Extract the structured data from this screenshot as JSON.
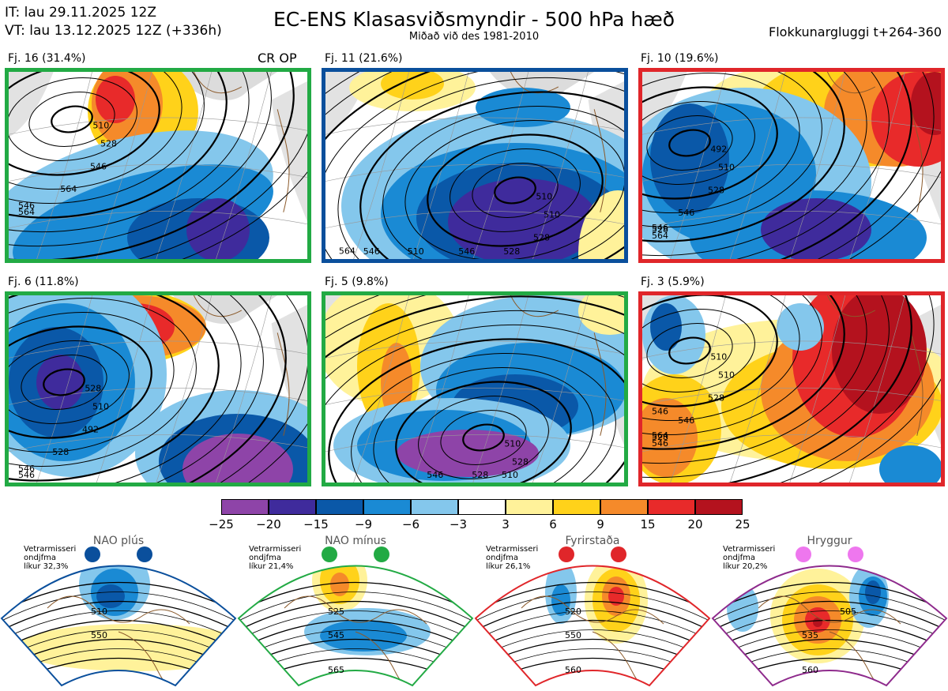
{
  "header": {
    "it": "IT: lau 29.11.2025 12Z",
    "vt": "VT: lau 13.12.2025 12Z  (+336h)",
    "title": "EC-ENS Klasasviðsmyndir - 500 hPa hæð",
    "subtitle": "Miðað við des 1981-2010",
    "window": "Flokkunargluggi t+264-360"
  },
  "clusters": [
    {
      "label": "Fj. 16 (31.4%)",
      "border": "#22aa44",
      "annotation": "CR OP",
      "contours": [
        "510",
        "528",
        "546",
        "564",
        "546",
        "564"
      ]
    },
    {
      "label": "Fj. 11 (21.6%)",
      "border": "#0a4f9c",
      "annotation": "",
      "contours": [
        "510",
        "510",
        "528",
        "528",
        "546",
        "510",
        "546",
        "564"
      ]
    },
    {
      "label": "Fj. 10 (19.6%)",
      "border": "#e0262a",
      "annotation": "",
      "contours": [
        "492",
        "510",
        "528",
        "546",
        "528",
        "564",
        "546"
      ]
    },
    {
      "label": "Fj. 6 (11.8%)",
      "border": "#22aa44",
      "annotation": "",
      "contours": [
        "528",
        "510",
        "492",
        "528",
        "546",
        "546"
      ]
    },
    {
      "label": "Fj. 5 (9.8%)",
      "border": "#22aa44",
      "annotation": "",
      "contours": [
        "510",
        "528",
        "510",
        "528",
        "546"
      ]
    },
    {
      "label": "Fj. 3 (5.9%)",
      "border": "#e0262a",
      "annotation": "",
      "contours": [
        "510",
        "510",
        "528",
        "546",
        "528",
        "546",
        "564",
        "546"
      ]
    }
  ],
  "colorbar": {
    "ticks": [
      "−25",
      "−20",
      "−15",
      "−9",
      "−6",
      "−3",
      "3",
      "6",
      "9",
      "15",
      "20",
      "25"
    ],
    "colors": [
      "#8e44a8",
      "#3f2b9c",
      "#0a58a8",
      "#1a8ad4",
      "#84c7ec",
      "#ffffff",
      "#fff29a",
      "#ffd21a",
      "#f58a2a",
      "#e82a2a",
      "#b4121e"
    ]
  },
  "regimes": [
    {
      "name": "NAO plús",
      "note": [
        "Vetrarmisseri",
        "ondjfma",
        "líkur 32,3%"
      ],
      "color": "#0a4f9c",
      "dot": "#0a4f9c",
      "contours": [
        "510",
        "550"
      ]
    },
    {
      "name": "NAO mínus",
      "note": [
        "Vetrarmisseri",
        "ondjfma",
        "líkur 21,4%"
      ],
      "color": "#22aa44",
      "dot": "#22aa44",
      "contours": [
        "525",
        "545",
        "565"
      ]
    },
    {
      "name": "Fyrirstaða",
      "note": [
        "Vetrarmisseri",
        "ondjfma",
        "líkur 26,1%"
      ],
      "color": "#e0262a",
      "dot": "#e0262a",
      "contours": [
        "520",
        "550",
        "560"
      ]
    },
    {
      "name": "Hryggur",
      "note": [
        "Vetrarmisseri",
        "ondjfma",
        "líkur 20,2%"
      ],
      "color": "#8e2a8c",
      "dot": "#ee77ee",
      "contours": [
        "505",
        "535",
        "560"
      ]
    }
  ]
}
